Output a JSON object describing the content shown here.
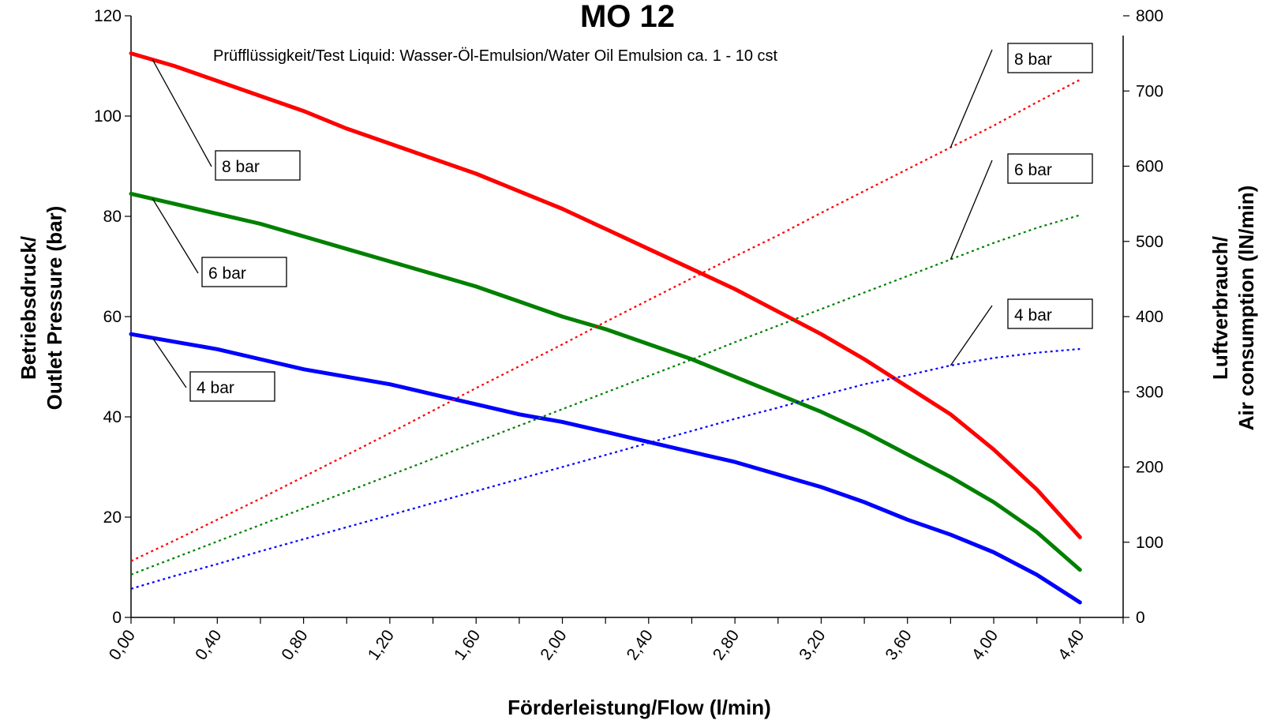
{
  "chart_data": {
    "type": "line",
    "title": "MO 12",
    "subtitle": "Prüfflüssigkeit/Test Liquid: Wasser-Öl-Emulsion/Water Oil Emulsion ca. 1 - 10 cst",
    "xlabel": "Förderleistung/Flow (l/min)",
    "ylabel_left": [
      "Betriebsdruck/",
      "Outlet Pressure (bar)"
    ],
    "ylabel_right": [
      "Luftverbrauch/",
      "Air consumption (lN/min)"
    ],
    "xlim": [
      0,
      4.6
    ],
    "ylim_left": [
      0,
      120
    ],
    "ylim_right": [
      0,
      800
    ],
    "x_tick_labels": [
      "0,00",
      "0,40",
      "0,80",
      "1,20",
      "1,60",
      "2,00",
      "2,40",
      "2,80",
      "3,20",
      "3,60",
      "4,00",
      "4,40"
    ],
    "x_tick_values": [
      0,
      0.4,
      0.8,
      1.2,
      1.6,
      2.0,
      2.4,
      2.8,
      3.2,
      3.6,
      4.0,
      4.4
    ],
    "y_left_ticks": [
      0,
      20,
      40,
      60,
      80,
      100,
      120
    ],
    "y_right_ticks": [
      0,
      100,
      200,
      300,
      400,
      500,
      600,
      700,
      800
    ],
    "grid": false,
    "x": [
      0,
      0.2,
      0.4,
      0.6,
      0.8,
      1.0,
      1.2,
      1.4,
      1.6,
      1.8,
      2.0,
      2.2,
      2.4,
      2.6,
      2.8,
      3.0,
      3.2,
      3.4,
      3.6,
      3.8,
      4.0,
      4.2,
      4.4
    ],
    "series": [
      {
        "label": "8 bar",
        "axis": "left",
        "style": "solid",
        "color": "#ff0000",
        "values": [
          112.5,
          110,
          107,
          104,
          101,
          97.5,
          94.5,
          91.5,
          88.5,
          85,
          81.5,
          77.5,
          73.5,
          69.5,
          65.5,
          61,
          56.5,
          51.5,
          46,
          40.5,
          33.5,
          25.5,
          16
        ]
      },
      {
        "label": "6 bar",
        "axis": "left",
        "style": "solid",
        "color": "#008000",
        "values": [
          84.5,
          82.5,
          80.5,
          78.5,
          76,
          73.5,
          71,
          68.5,
          66,
          63,
          60,
          57.5,
          54.5,
          51.5,
          48,
          44.5,
          41,
          37,
          32.5,
          28,
          23,
          17,
          9.5
        ]
      },
      {
        "label": "4 bar",
        "axis": "left",
        "style": "solid",
        "color": "#0000ff",
        "values": [
          56.5,
          55,
          53.5,
          51.5,
          49.5,
          48,
          46.5,
          44.5,
          42.5,
          40.5,
          39,
          37,
          35,
          33,
          31,
          28.5,
          26,
          23,
          19.5,
          16.5,
          13,
          8.5,
          3
        ]
      },
      {
        "label": "8 bar",
        "axis": "right",
        "style": "dotted",
        "color": "#ff0000",
        "values": [
          75,
          102,
          130,
          158,
          187,
          216,
          245,
          275,
          305,
          334,
          363,
          393,
          422,
          451,
          480,
          508,
          538,
          567,
          596,
          625,
          654,
          685,
          715
        ]
      },
      {
        "label": "6 bar",
        "axis": "right",
        "style": "dotted",
        "color": "#008000",
        "values": [
          57,
          79,
          101,
          123,
          145,
          167,
          189,
          211,
          233,
          255,
          277,
          299,
          321,
          343,
          366,
          388,
          410,
          432,
          454,
          476,
          498,
          518,
          535
        ]
      },
      {
        "label": "4 bar",
        "axis": "right",
        "style": "dotted",
        "color": "#0000ff",
        "values": [
          38,
          55,
          71,
          88,
          104,
          120,
          136,
          152,
          168,
          184,
          200,
          216,
          232,
          248,
          264,
          279,
          295,
          310,
          322,
          335,
          345,
          352,
          357
        ]
      }
    ]
  }
}
